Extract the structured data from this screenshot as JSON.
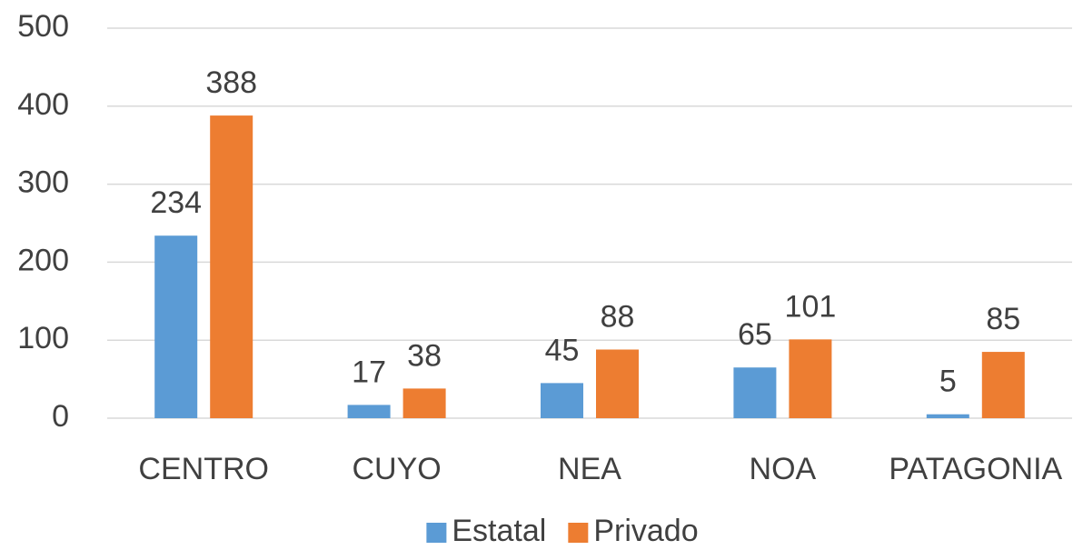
{
  "chart_data": {
    "type": "bar",
    "categories": [
      "CENTRO",
      "CUYO",
      "NEA",
      "NOA",
      "PATAGONIA"
    ],
    "series": [
      {
        "name": "Estatal",
        "color": "#5b9bd5",
        "values": [
          234,
          17,
          45,
          65,
          5
        ]
      },
      {
        "name": "Privado",
        "color": "#ed7d31",
        "values": [
          388,
          38,
          88,
          101,
          85
        ]
      }
    ],
    "ylim": [
      0,
      500
    ],
    "yticks": [
      0,
      100,
      200,
      300,
      400,
      500
    ],
    "grid": true,
    "legend": "bottom"
  }
}
